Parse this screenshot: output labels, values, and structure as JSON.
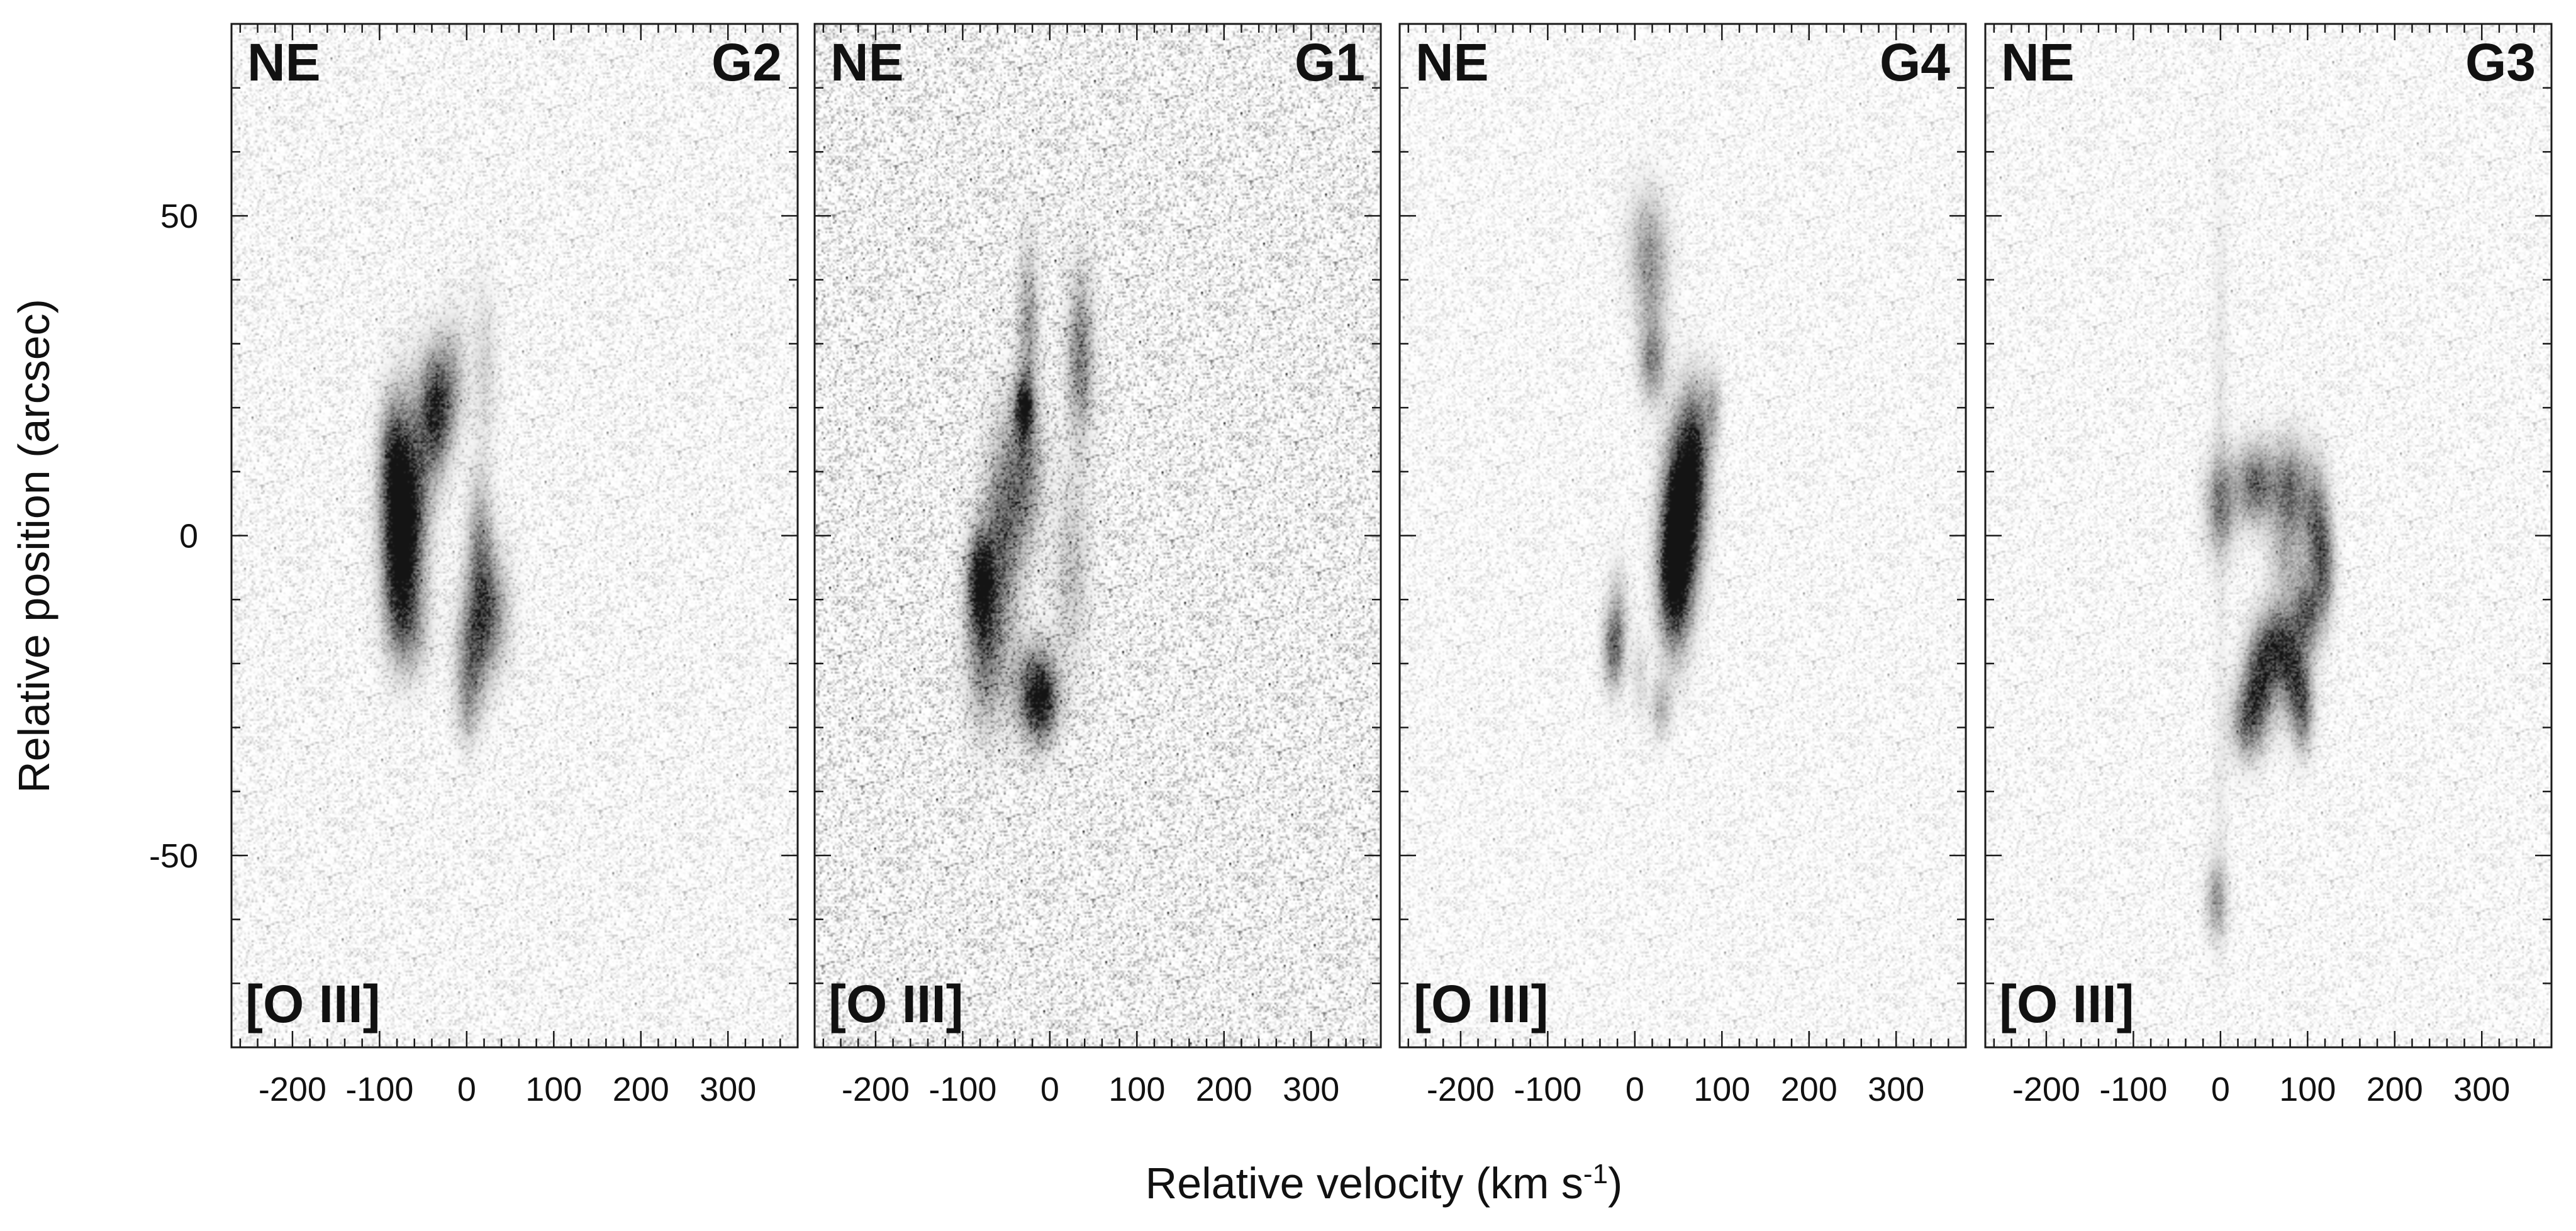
{
  "chart_data": {
    "type": "position-velocity diagram",
    "xlabel": "Relative velocity (km s",
    "xlabel_sup": "-1",
    "xlabel_close": ")",
    "ylabel": "Relative position (arcsec)",
    "x_range": [
      -270,
      380
    ],
    "y_range": [
      -80,
      80
    ],
    "x_ticks": [
      -200,
      -100,
      0,
      100,
      200,
      300
    ],
    "x_tick_labels": [
      "-200",
      "-100",
      "0",
      "100",
      "200",
      "300"
    ],
    "y_ticks": [
      50,
      0,
      -50
    ],
    "y_tick_labels": [
      "50",
      "0",
      "-50"
    ],
    "colormap": "grayscale (white background, dark emission)",
    "panels": [
      {
        "id": "G2",
        "direction_label": "NE",
        "line_label": "[O III]",
        "noise_level": 0.12,
        "blobs": [
          {
            "v": -35,
            "p": 20,
            "sv": 12,
            "sp": 6,
            "i": 0.85
          },
          {
            "v": -60,
            "p": 12,
            "sv": 16,
            "sp": 8,
            "i": 0.45
          },
          {
            "v": -85,
            "p": 12,
            "sv": 10,
            "sp": 6,
            "i": 0.5
          },
          {
            "v": -80,
            "p": 5,
            "sv": 14,
            "sp": 9,
            "i": 0.55
          },
          {
            "v": -70,
            "p": 0,
            "sv": 14,
            "sp": 7,
            "i": 0.75
          },
          {
            "v": -80,
            "p": -8,
            "sv": 12,
            "sp": 7,
            "i": 0.5
          },
          {
            "v": -65,
            "p": -14,
            "sv": 14,
            "sp": 5,
            "i": 0.4
          },
          {
            "v": 15,
            "p": -3,
            "sv": 10,
            "sp": 8,
            "i": 0.45
          },
          {
            "v": 25,
            "p": -12,
            "sv": 15,
            "sp": 6,
            "i": 0.55
          },
          {
            "v": 5,
            "p": -19,
            "sv": 12,
            "sp": 6,
            "i": 0.5
          },
          {
            "v": 0,
            "p": -27,
            "sv": 8,
            "sp": 4,
            "i": 0.2
          },
          {
            "v": -15,
            "p": 25,
            "sv": 10,
            "sp": 6,
            "i": 0.25
          },
          {
            "v": 20,
            "p": 27,
            "sv": 10,
            "sp": 8,
            "i": 0.15
          }
        ]
      },
      {
        "id": "G1",
        "direction_label": "NE",
        "line_label": "[O III]",
        "noise_level": 0.22,
        "blobs": [
          {
            "v": -30,
            "p": 20,
            "sv": 7,
            "sp": 3,
            "i": 0.95
          },
          {
            "v": -25,
            "p": 33,
            "sv": 8,
            "sp": 8,
            "i": 0.35
          },
          {
            "v": -30,
            "p": 10,
            "sv": 14,
            "sp": 8,
            "i": 0.5
          },
          {
            "v": -55,
            "p": 0,
            "sv": 14,
            "sp": 10,
            "i": 0.55
          },
          {
            "v": -80,
            "p": -7,
            "sv": 10,
            "sp": 5,
            "i": 0.95
          },
          {
            "v": -75,
            "p": -17,
            "sv": 14,
            "sp": 8,
            "i": 0.55
          },
          {
            "v": -20,
            "p": -24,
            "sv": 18,
            "sp": 5,
            "i": 0.5
          },
          {
            "v": -10,
            "p": -26,
            "sv": 12,
            "sp": 4,
            "i": 0.7
          },
          {
            "v": 35,
            "p": 28,
            "sv": 10,
            "sp": 8,
            "i": 0.5
          },
          {
            "v": 25,
            "p": -5,
            "sv": 14,
            "sp": 10,
            "i": 0.2
          }
        ]
      },
      {
        "id": "G4",
        "direction_label": "NE",
        "line_label": "[O III]",
        "noise_level": 0.1,
        "blobs": [
          {
            "v": 60,
            "p": 8,
            "sv": 14,
            "sp": 8,
            "i": 0.9
          },
          {
            "v": 50,
            "p": 0,
            "sv": 14,
            "sp": 8,
            "i": 0.95
          },
          {
            "v": 45,
            "p": -8,
            "sv": 12,
            "sp": 7,
            "i": 0.8
          },
          {
            "v": 70,
            "p": 15,
            "sv": 10,
            "sp": 6,
            "i": 0.45
          },
          {
            "v": 90,
            "p": 20,
            "sv": 6,
            "sp": 4,
            "i": 0.3
          },
          {
            "v": 15,
            "p": 45,
            "sv": 15,
            "sp": 6,
            "i": 0.35
          },
          {
            "v": 20,
            "p": 36,
            "sv": 12,
            "sp": 6,
            "i": 0.2
          },
          {
            "v": 20,
            "p": 27,
            "sv": 10,
            "sp": 4,
            "i": 0.45
          },
          {
            "v": -20,
            "p": -12,
            "sv": 8,
            "sp": 5,
            "i": 0.25
          },
          {
            "v": -25,
            "p": -18,
            "sv": 8,
            "sp": 4,
            "i": 0.55
          },
          {
            "v": 30,
            "p": -27,
            "sv": 8,
            "sp": 3,
            "i": 0.3
          },
          {
            "v": 5,
            "p": -22,
            "sv": 6,
            "sp": 4,
            "i": 0.15
          }
        ]
      },
      {
        "id": "G3",
        "direction_label": "NE",
        "line_label": "[O III]",
        "noise_level": 0.1,
        "blobs": [
          {
            "v": 0,
            "p": 5,
            "sv": 12,
            "sp": 5,
            "i": 0.5
          },
          {
            "v": 40,
            "p": 8,
            "sv": 15,
            "sp": 4,
            "i": 0.65
          },
          {
            "v": 80,
            "p": 7,
            "sv": 14,
            "sp": 5,
            "i": 0.6
          },
          {
            "v": 110,
            "p": 2,
            "sv": 10,
            "sp": 6,
            "i": 0.55
          },
          {
            "v": 120,
            "p": -5,
            "sv": 8,
            "sp": 5,
            "i": 0.5
          },
          {
            "v": 100,
            "p": -12,
            "sv": 12,
            "sp": 4,
            "i": 0.6
          },
          {
            "v": 65,
            "p": -17,
            "sv": 14,
            "sp": 4,
            "i": 0.7
          },
          {
            "v": 45,
            "p": -23,
            "sv": 12,
            "sp": 5,
            "i": 0.75
          },
          {
            "v": 85,
            "p": -22,
            "sv": 12,
            "sp": 5,
            "i": 0.65
          },
          {
            "v": 30,
            "p": -29,
            "sv": 12,
            "sp": 4,
            "i": 0.55
          },
          {
            "v": 95,
            "p": -28,
            "sv": 8,
            "sp": 4,
            "i": 0.45
          },
          {
            "v": 75,
            "p": -4,
            "sv": 14,
            "sp": 5,
            "i": 0.25
          },
          {
            "v": -5,
            "p": -57,
            "sv": 8,
            "sp": 4,
            "i": 0.4
          },
          {
            "v": 0,
            "p": 20,
            "sv": 6,
            "sp": 25,
            "i": 0.08
          },
          {
            "v": 0,
            "p": -40,
            "sv": 6,
            "sp": 15,
            "i": 0.06
          }
        ]
      }
    ]
  }
}
